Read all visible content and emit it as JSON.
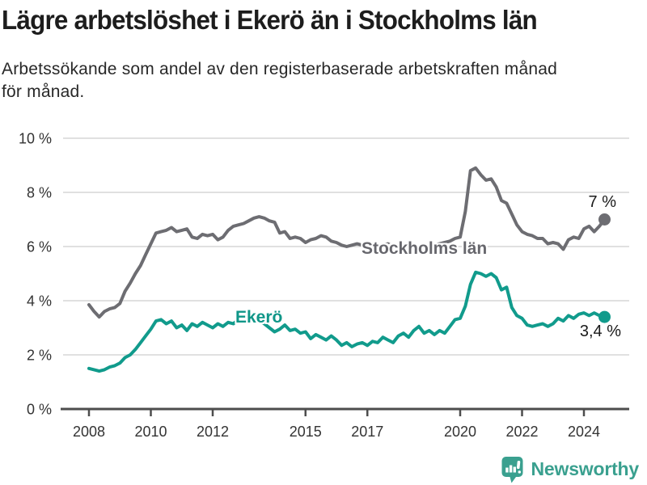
{
  "chart_data": {
    "type": "line",
    "title": "Lägre arbetslöshet i Ekerö än i Stockholms län",
    "subtitle": "Arbetssökande som andel av den registerbaserade arbetskraften månad för månad.",
    "unit": "%",
    "xlim": [
      2007.6,
      2025.2
    ],
    "ylim": [
      0,
      10
    ],
    "grid": "horizontal",
    "legend_position": "inline-labels",
    "x_axis": {
      "ticks": [
        {
          "value": 2008,
          "label": "2008"
        },
        {
          "value": 2010,
          "label": "2010"
        },
        {
          "value": 2012,
          "label": "2012"
        },
        {
          "value": 2015,
          "label": "2015"
        },
        {
          "value": 2017,
          "label": "2017"
        },
        {
          "value": 2020,
          "label": "2020"
        },
        {
          "value": 2022,
          "label": "2022"
        },
        {
          "value": 2024,
          "label": "2024"
        }
      ]
    },
    "y_axis": {
      "ticks": [
        {
          "value": 0,
          "label": "0 %"
        },
        {
          "value": 2,
          "label": "2 %"
        },
        {
          "value": 4,
          "label": "4 %"
        },
        {
          "value": 6,
          "label": "6 %"
        },
        {
          "value": 8,
          "label": "8 %"
        },
        {
          "value": 10,
          "label": "10 %"
        }
      ]
    },
    "series": [
      {
        "name": "Stockholms län",
        "color": "#6d6d72",
        "end_label": "7 %",
        "end_value": 7.0,
        "x_start": 2008.0,
        "x_step_months": 2,
        "values": [
          3.85,
          3.6,
          3.4,
          3.6,
          3.7,
          3.75,
          3.9,
          4.35,
          4.65,
          5.0,
          5.3,
          5.7,
          6.1,
          6.5,
          6.55,
          6.6,
          6.7,
          6.55,
          6.6,
          6.65,
          6.35,
          6.3,
          6.45,
          6.4,
          6.45,
          6.25,
          6.35,
          6.6,
          6.75,
          6.8,
          6.85,
          6.95,
          7.05,
          7.1,
          7.05,
          6.95,
          6.9,
          6.5,
          6.55,
          6.3,
          6.35,
          6.3,
          6.15,
          6.25,
          6.3,
          6.4,
          6.35,
          6.2,
          6.15,
          6.05,
          6.0,
          6.05,
          6.1,
          6.05,
          6.05,
          6.1,
          6.0,
          6.05,
          6.1,
          6.0,
          6.05,
          6.0,
          6.1,
          6.05,
          6.0,
          6.05,
          6.0,
          6.05,
          6.1,
          6.15,
          6.2,
          6.3,
          6.35,
          7.3,
          8.8,
          8.9,
          8.65,
          8.45,
          8.5,
          8.2,
          7.7,
          7.6,
          7.2,
          6.8,
          6.55,
          6.45,
          6.4,
          6.3,
          6.3,
          6.1,
          6.15,
          6.1,
          5.9,
          6.25,
          6.35,
          6.3,
          6.65,
          6.75,
          6.55,
          6.75,
          7.0
        ]
      },
      {
        "name": "Ekerö",
        "color": "#119b8c",
        "end_label": "3,4 %",
        "end_value": 3.4,
        "x_start": 2008.0,
        "x_step_months": 2,
        "values": [
          1.5,
          1.45,
          1.4,
          1.45,
          1.55,
          1.6,
          1.7,
          1.9,
          2.0,
          2.2,
          2.45,
          2.7,
          2.95,
          3.25,
          3.3,
          3.15,
          3.25,
          3.0,
          3.1,
          2.9,
          3.15,
          3.05,
          3.2,
          3.1,
          3.0,
          3.15,
          3.05,
          3.2,
          3.15,
          3.3,
          3.35,
          3.3,
          3.25,
          3.3,
          3.15,
          3.0,
          2.85,
          2.95,
          3.1,
          2.9,
          2.95,
          2.8,
          2.85,
          2.6,
          2.75,
          2.65,
          2.55,
          2.7,
          2.55,
          2.35,
          2.45,
          2.3,
          2.4,
          2.45,
          2.35,
          2.5,
          2.45,
          2.65,
          2.55,
          2.45,
          2.7,
          2.8,
          2.65,
          2.9,
          3.05,
          2.8,
          2.9,
          2.75,
          2.9,
          2.8,
          3.05,
          3.3,
          3.35,
          3.8,
          4.6,
          5.05,
          5.0,
          4.9,
          5.0,
          4.85,
          4.4,
          4.5,
          3.75,
          3.45,
          3.35,
          3.1,
          3.05,
          3.1,
          3.15,
          3.05,
          3.15,
          3.35,
          3.25,
          3.45,
          3.35,
          3.5,
          3.55,
          3.45,
          3.55,
          3.45,
          3.4
        ]
      }
    ]
  },
  "colors": {
    "gridline": "#dcdcdc",
    "axis": "#4d4d4d",
    "tick_text": "#333333",
    "annotation_text": "#1a1a1a",
    "brand_teal": "#3aa08f"
  },
  "footer": {
    "brand": "Newsworthy"
  }
}
